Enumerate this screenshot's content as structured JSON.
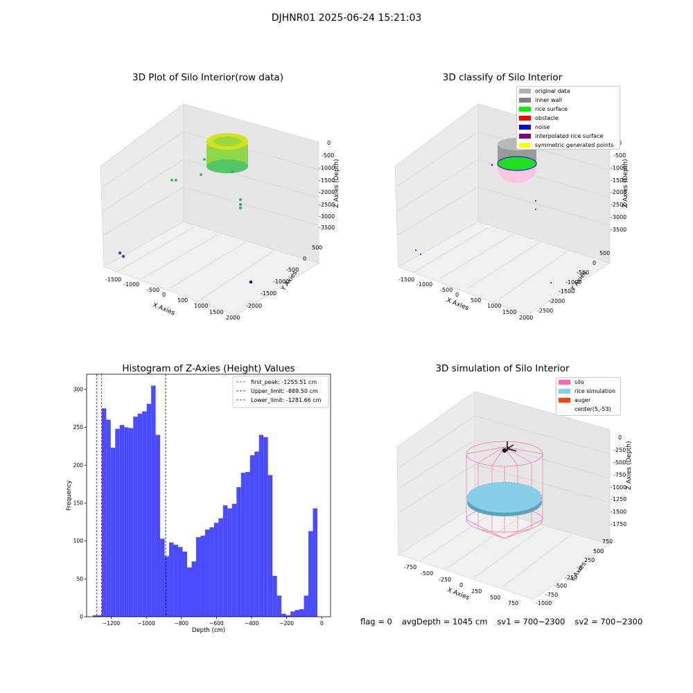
{
  "figure": {
    "suptitle": "DJHNR01 2025-06-24 15:21:03"
  },
  "panels": {
    "raw": {
      "title": "3D Plot of Silo Interior(row data)",
      "xlabel": "X Axies",
      "ylabel": "Y Axies",
      "zlabel": "Z Axies (Depth)",
      "xticks": [
        "-1500",
        "-1000",
        "-500",
        "0",
        "500",
        "1000",
        "1500",
        "2000"
      ],
      "yticks": [
        "500",
        "0",
        "-500",
        "-1000",
        "-1500",
        "-2000"
      ],
      "zticks": [
        "0",
        "-500",
        "-1000",
        "-1500",
        "-2000",
        "-2500",
        "-3000",
        "-3500"
      ]
    },
    "classify": {
      "title": "3D classify of Silo Interior",
      "xlabel": "X Axies",
      "ylabel": "Y Axies",
      "zlabel": "Z Axies (Depth)",
      "xticks": [
        "-1500",
        "-1000",
        "-500",
        "0",
        "500",
        "1000",
        "1500",
        "2000"
      ],
      "yticks": [
        "500",
        "0",
        "-500",
        "-1000",
        "-1500",
        "-2000",
        "-2500"
      ],
      "zticks": [
        "0",
        "-500",
        "-1000",
        "-1500",
        "-2000",
        "-2500",
        "-3000",
        "-3500"
      ],
      "legend": [
        {
          "label": "original data",
          "color": "#b3b3b3"
        },
        {
          "label": "inner wall",
          "color": "#808080"
        },
        {
          "label": "rice surface",
          "color": "#00ee00"
        },
        {
          "label": "obstacle",
          "color": "#ff0000"
        },
        {
          "label": "noise",
          "color": "#0000ee"
        },
        {
          "label": "interpolated rice surface",
          "color": "#800080"
        },
        {
          "label": "symmetric generated points",
          "color": "#ffff00"
        }
      ]
    },
    "simulation": {
      "title": "3D simulation of Silo Interior",
      "xlabel": "X Axies",
      "ylabel": "Y Axies",
      "zlabel": "Z Axies (Depth)",
      "xticks": [
        "-750",
        "-500",
        "-250",
        "0",
        "250",
        "500",
        "750"
      ],
      "yticks": [
        "750",
        "500",
        "250",
        "0",
        "-250",
        "-500",
        "-750",
        "-1000"
      ],
      "zticks": [
        "0",
        "-250",
        "-500",
        "-750",
        "-1000",
        "-1250",
        "-1500",
        "-1750"
      ],
      "legend": [
        {
          "label": "silo",
          "color": "#ff69b4"
        },
        {
          "label": "rice simulation",
          "color": "#87ceeb"
        },
        {
          "label": "auger",
          "color": "#ff4500"
        },
        {
          "label": "center(5,-53)",
          "color": "#ffffff"
        }
      ]
    }
  },
  "status": {
    "flag": "flag = 0",
    "avgDepth": "avgDepth = 1045 cm",
    "sv1": "sv1 = 700~2300",
    "sv2": "sv2 = 700~2300"
  },
  "chart_data": {
    "type": "bar",
    "title": "Histogram of Z-Axies (Height) Values",
    "xlabel": "Depth (cm)",
    "ylabel": "Frequency",
    "xlim": [
      -1340,
      50
    ],
    "ylim": [
      0,
      320
    ],
    "xticks": [
      -1200,
      -1000,
      -800,
      -600,
      -400,
      -200,
      0
    ],
    "yticks": [
      0,
      50,
      100,
      150,
      200,
      250,
      300
    ],
    "bin_start": -1305,
    "bin_width": 25.6,
    "counts": [
      2,
      2,
      275,
      260,
      223,
      248,
      253,
      250,
      249,
      264,
      268,
      271,
      281,
      305,
      240,
      103,
      80,
      98,
      95,
      92,
      86,
      65,
      73,
      105,
      107,
      115,
      118,
      124,
      130,
      147,
      143,
      149,
      171,
      190,
      191,
      213,
      218,
      240,
      237,
      187,
      54,
      28,
      4,
      2,
      7,
      9,
      10,
      28,
      113,
      143
    ],
    "color": "#0000ff",
    "vlines": [
      {
        "label": "first_peak: -1255.51 cm",
        "x": -1255.51,
        "color": "#ff0000"
      },
      {
        "label": "Upper_limit: -889.50 cm",
        "x": -889.5,
        "color": "#000000"
      },
      {
        "label": "Lower_limit: -1281.66 cm",
        "x": -1281.66,
        "color": "#0000ff"
      }
    ]
  }
}
